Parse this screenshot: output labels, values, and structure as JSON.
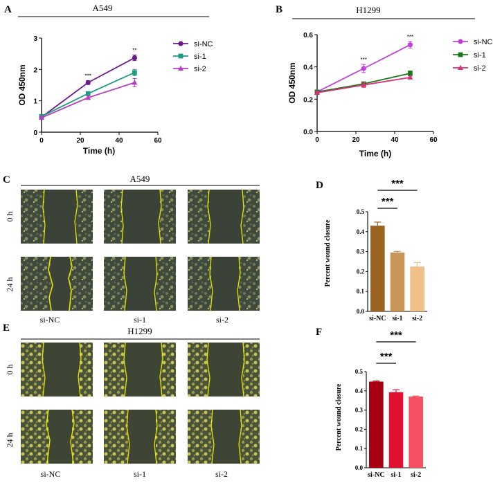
{
  "panel_letters": {
    "a": "A",
    "b": "B",
    "c": "C",
    "d": "D",
    "e": "E",
    "f": "F"
  },
  "microscopy": {
    "a549_title": "A549",
    "h1299_title": "H1299",
    "row_0h": "0 h",
    "row_24h": "24 h",
    "groups": [
      "si-NC",
      "si-1",
      "si-2"
    ]
  },
  "colors": {
    "a_si_nc": "#6a1b8a",
    "a_si_1": "#1f9a82",
    "a_si_2": "#b43fc0",
    "b_si_nc": "#c040d8",
    "b_si_1": "#1a7a1a",
    "b_si_2": "#d8307a",
    "d_bars": [
      "#9a6420",
      "#c8955a",
      "#f0c08a"
    ],
    "f_bars": [
      "#a80010",
      "#e01030",
      "#f55060"
    ],
    "outline": "#e6e600"
  },
  "chart_data": [
    {
      "id": "A",
      "type": "line",
      "title": "A549",
      "xlabel": "Time (h)",
      "ylabel": "OD 450nm",
      "xlim": [
        0,
        60
      ],
      "ylim": [
        0,
        3
      ],
      "xticks": [
        0,
        20,
        40,
        60
      ],
      "yticks": [
        0,
        1,
        2,
        3
      ],
      "legend_position": "right",
      "x": [
        0,
        24,
        48
      ],
      "series": [
        {
          "name": "si-NC",
          "values": [
            0.48,
            1.58,
            2.37
          ],
          "errors": [
            0.04,
            0.06,
            0.09
          ],
          "marker": "circle"
        },
        {
          "name": "si-1",
          "values": [
            0.5,
            1.23,
            1.9
          ],
          "errors": [
            0.04,
            0.05,
            0.1
          ],
          "marker": "square"
        },
        {
          "name": "si-2",
          "values": [
            0.46,
            1.1,
            1.58
          ],
          "errors": [
            0.04,
            0.06,
            0.13
          ],
          "marker": "triangle"
        }
      ],
      "annotations": [
        {
          "x": 24,
          "text": "***"
        },
        {
          "x": 48,
          "text": "**"
        }
      ]
    },
    {
      "id": "B",
      "type": "line",
      "title": "H1299",
      "xlabel": "Time (h)",
      "ylabel": "OD 450nm",
      "xlim": [
        0,
        60
      ],
      "ylim": [
        0,
        0.6
      ],
      "xticks": [
        0,
        20,
        40,
        60
      ],
      "yticks": [
        0.0,
        0.2,
        0.4,
        0.6
      ],
      "legend_position": "right",
      "x": [
        0,
        24,
        48
      ],
      "series": [
        {
          "name": "si-NC",
          "values": [
            0.245,
            0.39,
            0.537
          ],
          "errors": [
            0.008,
            0.025,
            0.02
          ],
          "marker": "circle"
        },
        {
          "name": "si-1",
          "values": [
            0.245,
            0.295,
            0.36
          ],
          "errors": [
            0.008,
            0.012,
            0.015
          ],
          "marker": "square"
        },
        {
          "name": "si-2",
          "values": [
            0.24,
            0.288,
            0.335
          ],
          "errors": [
            0.008,
            0.015,
            0.008
          ],
          "marker": "triangle"
        }
      ],
      "annotations": [
        {
          "x": 24,
          "text": "***"
        },
        {
          "x": 48,
          "text": "***"
        }
      ]
    },
    {
      "id": "D",
      "type": "bar",
      "ylabel": "Percent wound closure",
      "categories": [
        "si-NC",
        "si-1",
        "si-2"
      ],
      "values": [
        0.43,
        0.295,
        0.225
      ],
      "errors": [
        0.018,
        0.006,
        0.02
      ],
      "ylim": [
        0,
        0.5
      ],
      "yticks": [
        0.0,
        0.1,
        0.2,
        0.3,
        0.4,
        0.5
      ],
      "significance": [
        {
          "from": 0,
          "to": 1,
          "text": "***"
        },
        {
          "from": 0,
          "to": 2,
          "text": "***"
        }
      ]
    },
    {
      "id": "F",
      "type": "bar",
      "ylabel": "Percent wound closure",
      "categories": [
        "si-NC",
        "si-1",
        "si-2"
      ],
      "values": [
        0.448,
        0.393,
        0.37
      ],
      "errors": [
        0.003,
        0.012,
        0.003
      ],
      "ylim": [
        0,
        0.5
      ],
      "yticks": [
        0.0,
        0.1,
        0.2,
        0.3,
        0.4,
        0.5
      ],
      "significance": [
        {
          "from": 0,
          "to": 1,
          "text": "***"
        },
        {
          "from": 0,
          "to": 2,
          "text": "***"
        }
      ]
    }
  ]
}
